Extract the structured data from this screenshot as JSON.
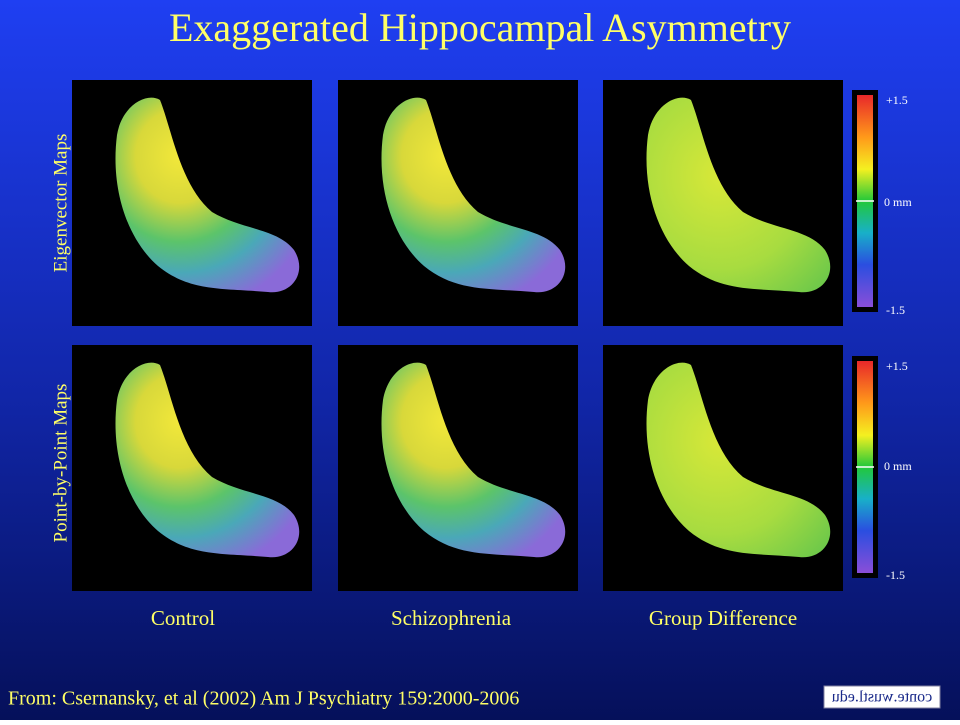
{
  "title": "Exaggerated Hippocampal Asymmetry",
  "row_labels": [
    "Eigenvector Maps",
    "Point-by-Point Maps"
  ],
  "column_labels": [
    "Control",
    "Schizophrenia",
    "Group Difference"
  ],
  "colorbars": [
    {
      "max": "+1.5",
      "zero": "0 mm",
      "min": "-1.5"
    },
    {
      "max": "+1.5",
      "zero": "0 mm",
      "min": "-1.5"
    }
  ],
  "citation": "From: Csernansky, et al (2002) Am J Psychiatry 159:2000-2006",
  "logo": "conte.wustl.edu"
}
